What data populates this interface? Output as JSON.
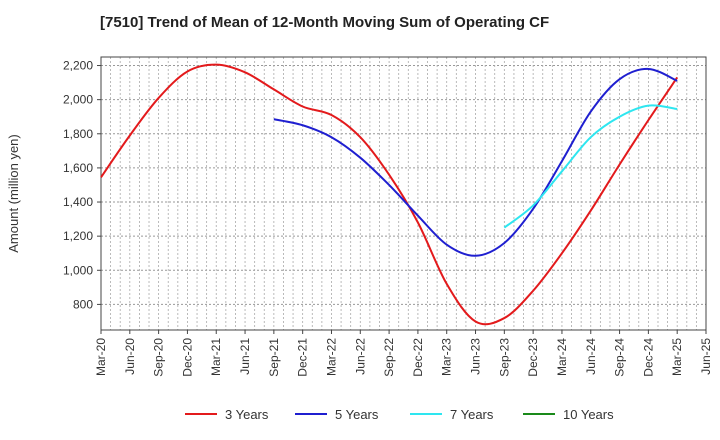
{
  "chart_data": {
    "type": "line",
    "title": "[7510]  Trend of Mean of 12-Month Moving Sum of Operating CF",
    "xlabel": "",
    "ylabel": "Amount (million yen)",
    "ylim": [
      650,
      2250
    ],
    "yticks": [
      800,
      1000,
      1200,
      1400,
      1600,
      1800,
      2000,
      2200
    ],
    "ytick_labels": [
      "800",
      "1,000",
      "1,200",
      "1,400",
      "1,600",
      "1,800",
      "2,000",
      "2,200"
    ],
    "categories": [
      "Mar-20",
      "Jun-20",
      "Sep-20",
      "Dec-20",
      "Mar-21",
      "Jun-21",
      "Sep-21",
      "Dec-21",
      "Mar-22",
      "Jun-22",
      "Sep-22",
      "Dec-22",
      "Mar-23",
      "Jun-23",
      "Sep-23",
      "Dec-23",
      "Mar-24",
      "Jun-24",
      "Sep-24",
      "Dec-24",
      "Mar-25",
      "Jun-25"
    ],
    "grid": true,
    "legend_position": "bottom",
    "series": [
      {
        "name": "3 Years",
        "color": "#e31a1c",
        "values": [
          1545,
          1790,
          2010,
          2165,
          2205,
          2160,
          2060,
          1960,
          1910,
          1780,
          1560,
          1280,
          920,
          700,
          720,
          880,
          1100,
          1350,
          1620,
          1880,
          2130,
          null
        ]
      },
      {
        "name": "5 Years",
        "color": "#1f1fd0",
        "values": [
          null,
          null,
          null,
          null,
          null,
          null,
          1885,
          1850,
          1780,
          1660,
          1500,
          1320,
          1150,
          1085,
          1160,
          1360,
          1640,
          1930,
          2120,
          2180,
          2110,
          null
        ]
      },
      {
        "name": "7 Years",
        "color": "#2ee6f0",
        "values": [
          null,
          null,
          null,
          null,
          null,
          null,
          null,
          null,
          null,
          null,
          null,
          null,
          null,
          null,
          1250,
          1380,
          1580,
          1780,
          1900,
          1965,
          1945,
          null
        ]
      },
      {
        "name": "10 Years",
        "color": "#1a8a1a",
        "values": [
          null,
          null,
          null,
          null,
          null,
          null,
          null,
          null,
          null,
          null,
          null,
          null,
          null,
          null,
          null,
          null,
          null,
          null,
          null,
          null,
          null,
          null
        ]
      }
    ]
  }
}
